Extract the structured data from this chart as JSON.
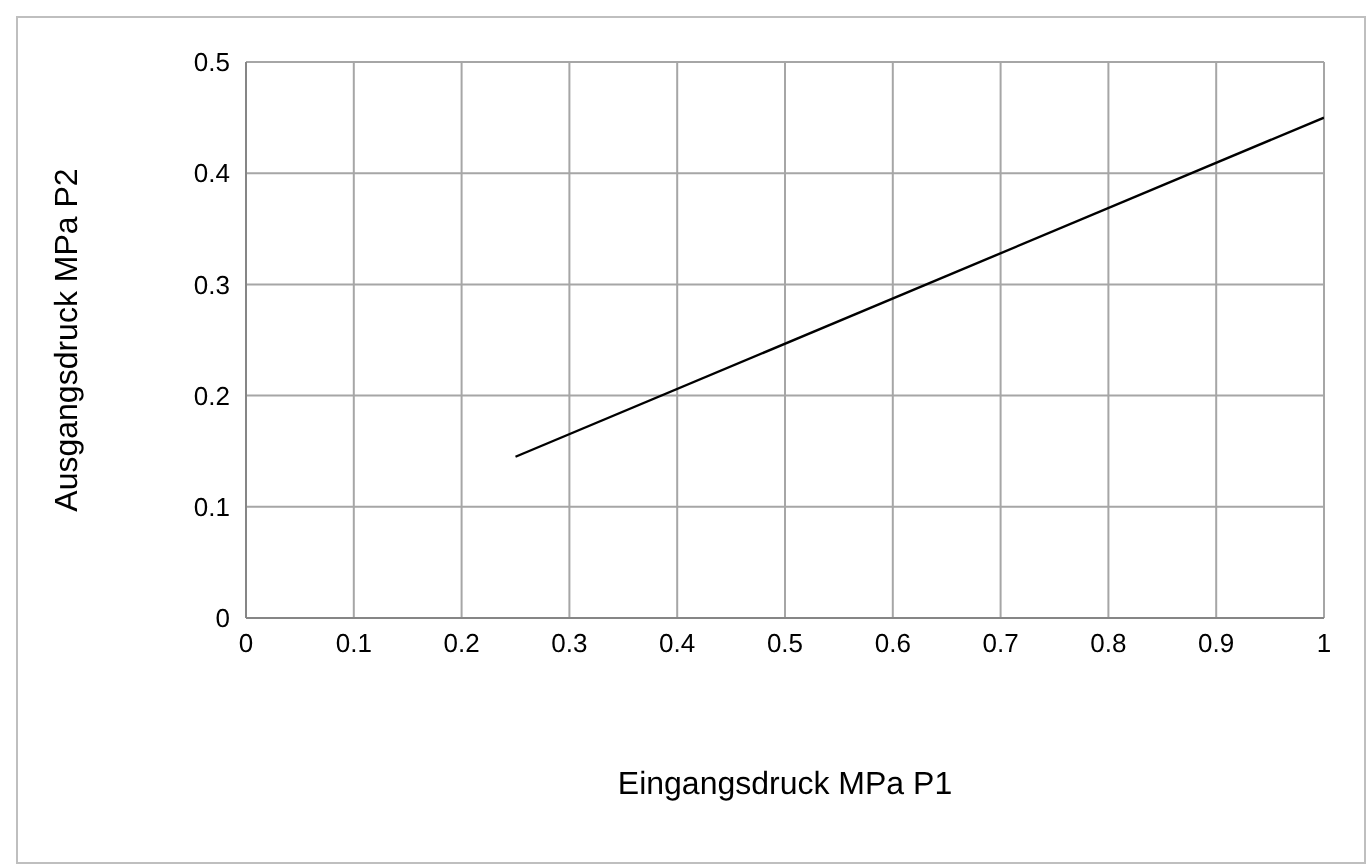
{
  "chart_data": {
    "type": "line",
    "xlabel": "Eingangsdruck MPa P1",
    "ylabel": "Ausgangsdruck MPa P2",
    "x": [
      0.25,
      1
    ],
    "series": [
      {
        "color": "#000000",
        "values": [
          0.145,
          0.45
        ]
      }
    ],
    "xlim": [
      0,
      1
    ],
    "xticks": [
      0,
      0.1,
      0.2,
      0.3,
      0.4,
      0.5,
      0.6,
      0.7,
      0.8,
      0.9,
      1
    ],
    "ylim": [
      0,
      0.5
    ],
    "yticks": [
      0,
      0.1,
      0.2,
      0.3,
      0.4,
      0.5
    ],
    "grid": true,
    "legend": false,
    "marker": "none",
    "line_style": "solid"
  }
}
